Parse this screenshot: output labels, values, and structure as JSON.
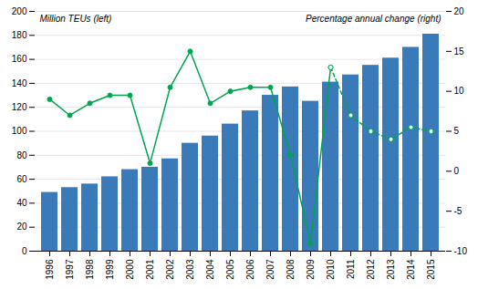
{
  "chart_data": {
    "type": "bar+line",
    "categories": [
      "1996",
      "1997",
      "1998",
      "1999",
      "2000",
      "2001",
      "2002",
      "2003",
      "2004",
      "2005",
      "2006",
      "2007",
      "2008",
      "2009",
      "2010",
      "2011",
      "2012",
      "2013",
      "2014",
      "2015"
    ],
    "ylabel": "Million TEUs (left)",
    "y2label": "Percentage annual change (right)",
    "series": [
      {
        "type": "bar",
        "color": "#3A7AB8",
        "values": [
          49,
          53,
          56,
          62,
          68,
          70,
          77,
          90,
          96,
          106,
          117,
          130,
          137,
          125,
          141,
          147,
          155,
          161,
          170,
          181
        ]
      },
      {
        "type": "line",
        "axis": "y2",
        "color": "#00A550",
        "line_style": "solid",
        "marker": "circle",
        "values": [
          9,
          7,
          8.5,
          9.5,
          9.5,
          1,
          10.5,
          15,
          8.5,
          10,
          10.5,
          10.5,
          2,
          -9,
          13,
          null,
          null,
          null,
          null,
          null
        ]
      },
      {
        "type": "line",
        "axis": "y2",
        "color": "#00A550",
        "line_style": "dashed",
        "marker": "open_circle",
        "values": [
          null,
          null,
          null,
          null,
          null,
          null,
          null,
          null,
          null,
          null,
          null,
          null,
          null,
          null,
          13,
          7,
          5,
          4,
          5.5,
          5
        ]
      }
    ],
    "ylim": [
      0,
      200
    ],
    "yticks": [
      0,
      20,
      40,
      60,
      80,
      100,
      120,
      140,
      160,
      180,
      200
    ],
    "y2lim": [
      -10,
      20
    ],
    "y2ticks": [
      -10,
      -5,
      0,
      5,
      10,
      15,
      20
    ],
    "grid": true
  }
}
